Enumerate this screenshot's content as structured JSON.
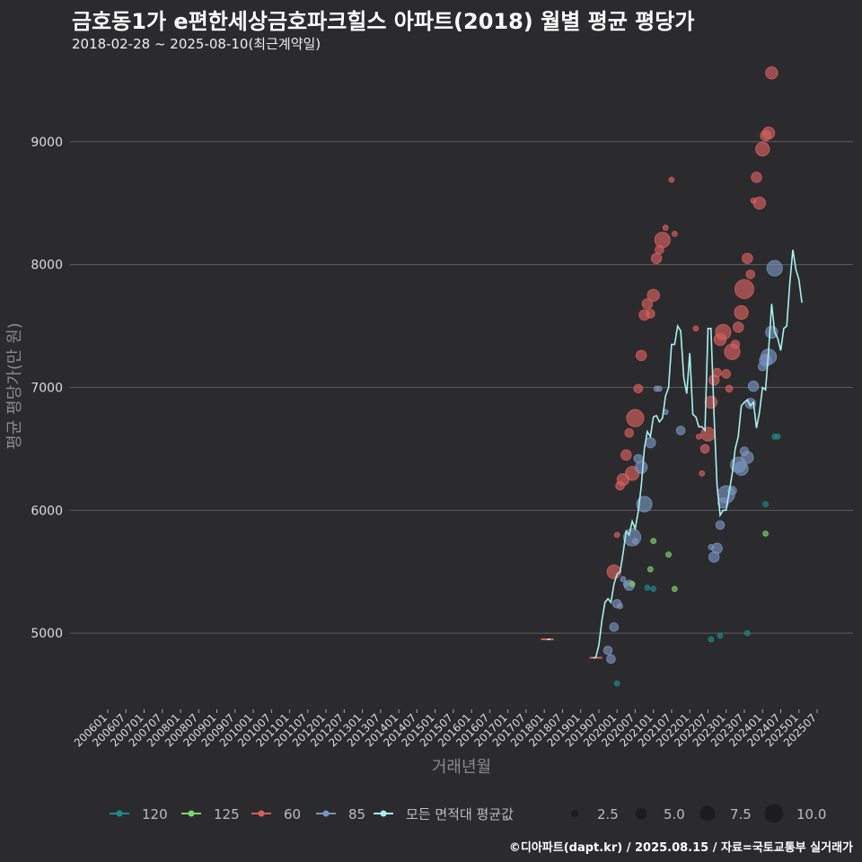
{
  "title": "금호동1가 e편한세상금호파크힐스 아파트(2018) 월별 평균 평당가",
  "subtitle": "2018-02-28 ~ 2025-08-10(최근계약일)",
  "footer": "©디아파트(dapt.kr) / 2025.08.15 / 자료=국토교통부 실거래가",
  "colors": {
    "background": "#2b2b2d",
    "grid": "#5c5c5e",
    "s120": "#1f8a8a",
    "s125": "#7ed36a",
    "s60": "#d95f5f",
    "s85": "#7a94c0",
    "avg": "#a8f0f0"
  },
  "chart_data": {
    "type": "scatter",
    "title": "금호동1가 e편한세상금호파크힐스 아파트(2018) 월별 평균 평당가",
    "xlabel": "거래년월",
    "ylabel": "평균 평당가(만 원)",
    "ylim": [
      4380,
      9700
    ],
    "yticks": [
      5000,
      6000,
      7000,
      8000,
      9000
    ],
    "x_range": [
      "2006-01",
      "2025-07"
    ],
    "xtick_labels": [
      "200601",
      "200607",
      "200701",
      "200707",
      "200801",
      "200807",
      "200901",
      "200907",
      "201001",
      "201007",
      "201101",
      "201107",
      "201201",
      "201207",
      "201301",
      "201307",
      "201401",
      "201407",
      "201501",
      "201507",
      "201601",
      "201607",
      "201701",
      "201707",
      "201801",
      "201807",
      "201901",
      "201907",
      "202001",
      "202007",
      "202101",
      "202107",
      "202201",
      "202207",
      "202301",
      "202307",
      "202401",
      "202407",
      "202501",
      "202507"
    ],
    "legend": {
      "series_labels": [
        "120",
        "125",
        "60",
        "85",
        "모든 면적대 평균값"
      ],
      "size_labels": [
        "2.5",
        "5.0",
        "7.5",
        "10.0"
      ]
    },
    "series": [
      {
        "name": "60",
        "color": "#d95f5f",
        "points": [
          [
            "2018-02",
            4950,
            1
          ],
          [
            "2019-06",
            4800,
            1
          ],
          [
            "2019-12",
            5500,
            6
          ],
          [
            "2020-01",
            5800,
            1
          ],
          [
            "2020-02",
            6200,
            3
          ],
          [
            "2020-03",
            6250,
            5
          ],
          [
            "2020-04",
            6450,
            4
          ],
          [
            "2020-05",
            6630,
            3
          ],
          [
            "2020-06",
            6300,
            6
          ],
          [
            "2020-07",
            6750,
            8
          ],
          [
            "2020-08",
            6990,
            3
          ],
          [
            "2020-09",
            7260,
            4
          ],
          [
            "2020-10",
            7590,
            4
          ],
          [
            "2020-11",
            7680,
            4
          ],
          [
            "2020-12",
            7600,
            3
          ],
          [
            "2021-01",
            7750,
            5
          ],
          [
            "2021-02",
            8050,
            4
          ],
          [
            "2021-03",
            8120,
            3
          ],
          [
            "2021-04",
            8200,
            7
          ],
          [
            "2021-05",
            8300,
            1
          ],
          [
            "2021-07",
            8690,
            1
          ],
          [
            "2021-08",
            8250,
            1
          ],
          [
            "2022-03",
            7480,
            1
          ],
          [
            "2022-04",
            6600,
            1
          ],
          [
            "2022-05",
            6300,
            1
          ],
          [
            "2022-06",
            6500,
            3
          ],
          [
            "2022-07",
            6620,
            6
          ],
          [
            "2022-08",
            6880,
            5
          ],
          [
            "2022-09",
            7060,
            4
          ],
          [
            "2022-10",
            7120,
            3
          ],
          [
            "2022-11",
            7390,
            5
          ],
          [
            "2022-12",
            7450,
            7
          ],
          [
            "2023-01",
            7110,
            3
          ],
          [
            "2023-02",
            6990,
            2
          ],
          [
            "2023-03",
            7290,
            7
          ],
          [
            "2023-04",
            7350,
            3
          ],
          [
            "2023-05",
            7490,
            4
          ],
          [
            "2023-06",
            7610,
            6
          ],
          [
            "2023-07",
            7800,
            9
          ],
          [
            "2023-08",
            8050,
            4
          ],
          [
            "2023-09",
            7920,
            3
          ],
          [
            "2023-10",
            8520,
            1
          ],
          [
            "2023-11",
            8710,
            4
          ],
          [
            "2023-12",
            8500,
            5
          ],
          [
            "2024-01",
            8940,
            6
          ],
          [
            "2024-02",
            9050,
            4
          ],
          [
            "2024-03",
            9070,
            5
          ],
          [
            "2024-04",
            9560,
            5
          ]
        ]
      },
      {
        "name": "85",
        "color": "#7a94c0",
        "points": [
          [
            "2019-10",
            4860,
            3
          ],
          [
            "2019-11",
            4790,
            3
          ],
          [
            "2019-12",
            5050,
            3
          ],
          [
            "2020-01",
            5240,
            3
          ],
          [
            "2020-02",
            5220,
            1
          ],
          [
            "2020-03",
            5440,
            1
          ],
          [
            "2020-04",
            5400,
            1
          ],
          [
            "2020-05",
            5390,
            4
          ],
          [
            "2020-06",
            5780,
            8
          ],
          [
            "2020-07",
            5750,
            1
          ],
          [
            "2020-08",
            6420,
            3
          ],
          [
            "2020-09",
            6350,
            5
          ],
          [
            "2020-10",
            6050,
            7
          ],
          [
            "2020-12",
            6550,
            4
          ],
          [
            "2021-02",
            6990,
            1
          ],
          [
            "2021-03",
            6990,
            1
          ],
          [
            "2021-05",
            6800,
            1
          ],
          [
            "2021-10",
            6650,
            3
          ],
          [
            "2022-08",
            5700,
            1
          ],
          [
            "2022-09",
            5620,
            4
          ],
          [
            "2022-10",
            5690,
            4
          ],
          [
            "2022-11",
            5880,
            3
          ],
          [
            "2022-12",
            6060,
            4
          ],
          [
            "2023-01",
            6130,
            8
          ],
          [
            "2023-03",
            6160,
            3
          ],
          [
            "2023-05",
            6370,
            7
          ],
          [
            "2023-06",
            6340,
            6
          ],
          [
            "2023-07",
            6480,
            3
          ],
          [
            "2023-08",
            6430,
            5
          ],
          [
            "2023-09",
            6870,
            4
          ],
          [
            "2023-10",
            7010,
            4
          ],
          [
            "2024-01",
            7170,
            3
          ],
          [
            "2024-02",
            7220,
            5
          ],
          [
            "2024-03",
            7250,
            7
          ],
          [
            "2024-04",
            7450,
            5
          ],
          [
            "2024-05",
            7970,
            7
          ]
        ]
      },
      {
        "name": "120",
        "color": "#1f8a8a",
        "points": [
          [
            "2020-01",
            4590,
            1
          ],
          [
            "2020-11",
            5370,
            1
          ],
          [
            "2021-01",
            5360,
            1
          ],
          [
            "2022-08",
            4950,
            1
          ],
          [
            "2022-11",
            4980,
            1
          ],
          [
            "2023-08",
            5000,
            1
          ],
          [
            "2024-02",
            6050,
            1
          ],
          [
            "2024-05",
            6600,
            1
          ],
          [
            "2024-06",
            6600,
            1
          ]
        ]
      },
      {
        "name": "125",
        "color": "#7ed36a",
        "points": [
          [
            "2020-06",
            5400,
            1
          ],
          [
            "2020-12",
            5520,
            1
          ],
          [
            "2021-01",
            5750,
            1
          ],
          [
            "2021-06",
            5640,
            1
          ],
          [
            "2021-08",
            5360,
            1
          ],
          [
            "2024-02",
            5810,
            1
          ]
        ]
      }
    ],
    "average_line": {
      "name": "모든 면적대 평균값",
      "color": "#a8f0f0",
      "points": [
        [
          "2018-02",
          4950
        ],
        [
          "2018-03",
          4950
        ],
        [
          "2019-05",
          4800
        ],
        [
          "2019-06",
          4800
        ],
        [
          "2019-07",
          4900
        ],
        [
          "2019-08",
          5100
        ],
        [
          "2019-09",
          5250
        ],
        [
          "2019-10",
          5280
        ],
        [
          "2019-11",
          5250
        ],
        [
          "2019-12",
          5400
        ],
        [
          "2020-01",
          5480
        ],
        [
          "2020-02",
          5500
        ],
        [
          "2020-03",
          5650
        ],
        [
          "2020-04",
          5830
        ],
        [
          "2020-05",
          5800
        ],
        [
          "2020-06",
          5910
        ],
        [
          "2020-07",
          5850
        ],
        [
          "2020-08",
          5990
        ],
        [
          "2020-09",
          6200
        ],
        [
          "2020-10",
          6500
        ],
        [
          "2020-11",
          6640
        ],
        [
          "2020-12",
          6600
        ],
        [
          "2021-01",
          6760
        ],
        [
          "2021-02",
          6770
        ],
        [
          "2021-03",
          6720
        ],
        [
          "2021-04",
          6750
        ],
        [
          "2021-05",
          6930
        ],
        [
          "2021-06",
          7000
        ],
        [
          "2021-07",
          7350
        ],
        [
          "2021-08",
          7350
        ],
        [
          "2021-09",
          7500
        ],
        [
          "2021-10",
          7460
        ],
        [
          "2021-11",
          7080
        ],
        [
          "2021-12",
          6950
        ],
        [
          "2022-01",
          7280
        ],
        [
          "2022-02",
          6780
        ],
        [
          "2022-03",
          6760
        ],
        [
          "2022-04",
          6680
        ],
        [
          "2022-05",
          6680
        ],
        [
          "2022-06",
          6650
        ],
        [
          "2022-07",
          7480
        ],
        [
          "2022-08",
          7480
        ],
        [
          "2022-09",
          6780
        ],
        [
          "2022-10",
          6200
        ],
        [
          "2022-11",
          5960
        ],
        [
          "2022-12",
          6000
        ],
        [
          "2023-01",
          6000
        ],
        [
          "2023-02",
          6150
        ],
        [
          "2023-03",
          6300
        ],
        [
          "2023-04",
          6500
        ],
        [
          "2023-05",
          6600
        ],
        [
          "2023-06",
          6850
        ],
        [
          "2023-07",
          6880
        ],
        [
          "2023-08",
          6900
        ],
        [
          "2023-09",
          6850
        ],
        [
          "2023-10",
          6880
        ],
        [
          "2023-11",
          6670
        ],
        [
          "2023-12",
          6800
        ],
        [
          "2024-01",
          7000
        ],
        [
          "2024-02",
          6980
        ],
        [
          "2024-03",
          7300
        ],
        [
          "2024-04",
          7680
        ],
        [
          "2024-05",
          7450
        ],
        [
          "2024-06",
          7400
        ],
        [
          "2024-07",
          7300
        ],
        [
          "2024-08",
          7480
        ],
        [
          "2024-09",
          7500
        ],
        [
          "2024-10",
          7850
        ],
        [
          "2024-11",
          8120
        ],
        [
          "2024-12",
          7960
        ],
        [
          "2025-01",
          7880
        ],
        [
          "2025-02",
          7690
        ]
      ]
    }
  }
}
